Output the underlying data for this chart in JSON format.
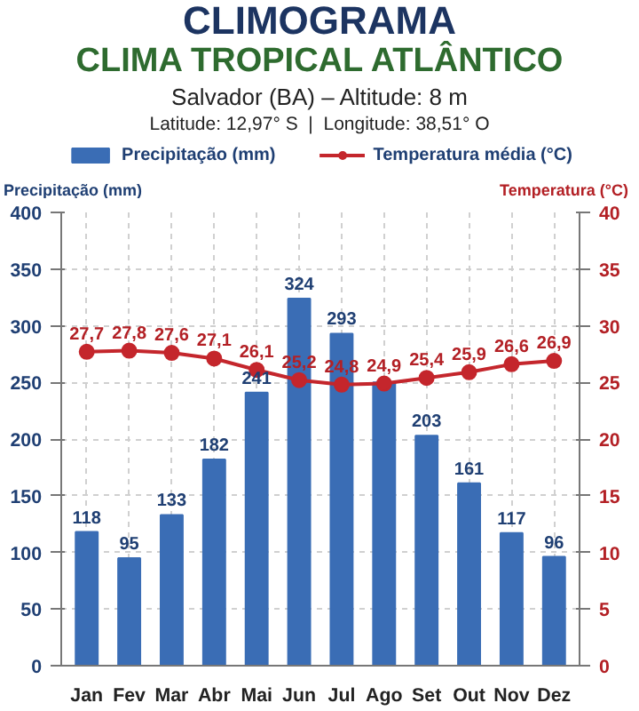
{
  "chart_data": {
    "type": "bar",
    "title": "CLIMOGRAMA",
    "subtitle": "CLIMA TROPICAL ATLÂNTICO",
    "annotations": [
      "Salvador (BA) – Altitude: 8 m",
      "Latitude: 12,97° S  |  Longitude: 38,51° O"
    ],
    "ylabel": "Precipitação (mm)",
    "y2label": "Temperatura (°C)",
    "categories": [
      "Jan",
      "Fev",
      "Mar",
      "Abr",
      "Mai",
      "Jun",
      "Jul",
      "Ago",
      "Set",
      "Out",
      "Nov",
      "Dez"
    ],
    "series": [
      {
        "name": "Precipitação (mm)",
        "color": "#3a6db5",
        "values": [
          118,
          95,
          133,
          182,
          241,
          324,
          293,
          250,
          203,
          161,
          117,
          96
        ],
        "value_labels": [
          "118",
          "95",
          "133",
          "182",
          "241",
          "324",
          "293",
          null,
          "203",
          "161",
          "117",
          "96"
        ]
      },
      {
        "name": "Temperatura média (°C)",
        "type": "line",
        "axis": "y2",
        "color": "#c4262c",
        "marker": "circle",
        "values": [
          27.7,
          27.8,
          27.6,
          27.1,
          26.1,
          25.2,
          24.8,
          24.9,
          25.4,
          25.9,
          26.6,
          26.9
        ],
        "value_labels": [
          "27,7",
          "27,8",
          "27,6",
          "27,1",
          "26,1",
          "25,2",
          "24,8",
          "24,9",
          "25,4",
          "25,9",
          "26,6",
          "26,9"
        ]
      }
    ],
    "ylim": [
      0,
      400
    ],
    "yticks": [
      0,
      50,
      100,
      150,
      200,
      250,
      300,
      350,
      400
    ],
    "y2lim": [
      0,
      40
    ],
    "y2ticks": [
      0,
      5,
      10,
      15,
      20,
      25,
      30,
      35,
      40
    ],
    "grid": true,
    "legend": "top"
  }
}
